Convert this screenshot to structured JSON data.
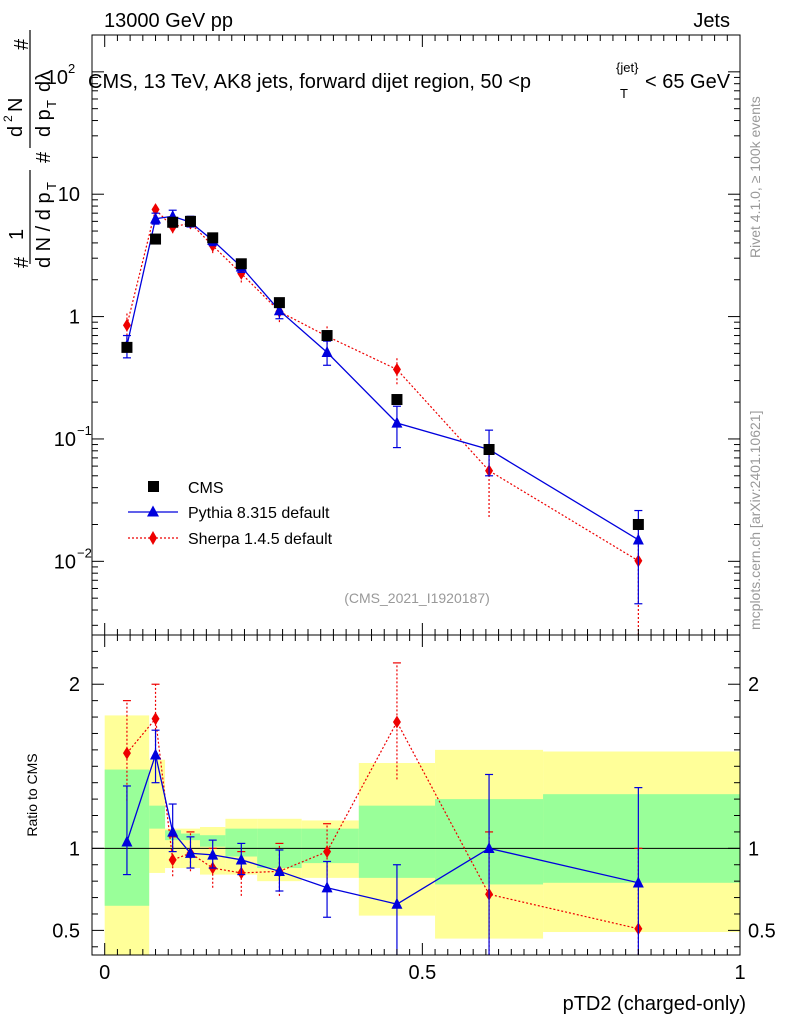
{
  "header": {
    "left": "13000 GeV pp",
    "right": "Jets"
  },
  "side_labels": {
    "rivet": "Rivet 4.1.0, ≥ 100k events",
    "mcplots": "mcplots.cern.ch [arXiv:2401.10621]"
  },
  "chart_data": [
    {
      "type": "scatter",
      "panel": "main",
      "title": "CMS, 13 TeV, AK8 jets, forward dijet region, 50 <p_T^{jet}< 65 GeV",
      "title_parts": {
        "prefix": "CMS, 13 TeV, AK8 jets, forward dijet region, 50 <p",
        "sup": "{jet}",
        "sub": "T",
        "suffix": "< 65 GeV"
      },
      "ylabel": "1/dN/dpT  dN^2/dpT dλ",
      "ylabel_parts": {
        "hash1": "#",
        "frac1_num": "1",
        "frac1_den": "d N / d p",
        "frac1_den_sub": "T",
        "hash2": "#",
        "frac2_num": "d",
        "frac2_num_sup": "2",
        "frac2_num_rest": "N",
        "hash3": "#",
        "frac2_den": "d p",
        "frac2_den_sub": "T",
        "frac2_den_rest": "dλ"
      },
      "yscale": "log",
      "ylim": [
        0.0025,
        200
      ],
      "xlim": [
        -0.02,
        1.0
      ],
      "y_ticks": [
        {
          "value": 100,
          "label": "10",
          "sup": "2"
        },
        {
          "value": 10,
          "label": "10",
          "sup": ""
        },
        {
          "value": 1,
          "label": "1",
          "sup": ""
        },
        {
          "value": 0.1,
          "label": "10",
          "sup": "−1"
        },
        {
          "value": 0.01,
          "label": "10",
          "sup": "−2"
        }
      ],
      "watermark": "(CMS_2021_I1920187)",
      "legend": {
        "placement": "bottom-left",
        "entries": [
          {
            "name": "CMS",
            "marker": "square",
            "color": "#000000"
          },
          {
            "name": "Pythia 8.315 default",
            "marker": "triangle",
            "color": "#0000dd"
          },
          {
            "name": "Sherpa 1.4.5 default",
            "marker": "diamond",
            "color": "#ee0000"
          }
        ]
      },
      "series": [
        {
          "name": "CMS",
          "x": [
            0.035,
            0.08,
            0.107,
            0.135,
            0.17,
            0.215,
            0.275,
            0.35,
            0.46,
            0.605,
            0.84
          ],
          "values": [
            0.56,
            4.3,
            5.9,
            6.0,
            4.4,
            2.7,
            1.3,
            0.7,
            0.21,
            0.082,
            0.02
          ]
        },
        {
          "name": "Pythia 8.315 default",
          "x": [
            0.035,
            0.08,
            0.107,
            0.135,
            0.17,
            0.215,
            0.275,
            0.35,
            0.46,
            0.605,
            0.84
          ],
          "values": [
            0.58,
            6.3,
            6.6,
            5.9,
            4.2,
            2.55,
            1.12,
            0.51,
            0.135,
            0.082,
            0.015
          ],
          "err_low": [
            0.46,
            5.7,
            6.0,
            5.4,
            3.8,
            2.3,
            0.96,
            0.4,
            0.085,
            0.05,
            0.0045
          ],
          "err_high": [
            0.7,
            7.0,
            7.4,
            6.6,
            4.6,
            2.8,
            1.3,
            0.63,
            0.185,
            0.118,
            0.026
          ]
        },
        {
          "name": "Sherpa 1.4.5 default",
          "x": [
            0.035,
            0.08,
            0.107,
            0.135,
            0.17,
            0.215,
            0.275,
            0.35,
            0.46,
            0.605,
            0.84
          ],
          "values": [
            0.85,
            7.5,
            5.4,
            5.8,
            3.8,
            2.25,
            1.1,
            0.69,
            0.37,
            0.055,
            0.0101
          ],
          "err_low": [
            0.65,
            6.7,
            4.8,
            5.2,
            3.3,
            1.9,
            0.9,
            0.55,
            0.28,
            0.023,
            0.0022
          ],
          "err_high": [
            1.07,
            8.4,
            6.0,
            6.4,
            4.3,
            2.6,
            1.3,
            0.84,
            0.47,
            0.088,
            0.018
          ]
        }
      ]
    },
    {
      "type": "scatter",
      "panel": "ratio",
      "xlabel": "pTD2 (charged-only)",
      "ylabel": "Ratio to CMS",
      "xlim": [
        -0.02,
        1.0
      ],
      "ylim": [
        0.35,
        2.3
      ],
      "x_ticks": [
        {
          "value": 0,
          "label": "0"
        },
        {
          "value": 0.5,
          "label": "0.5"
        },
        {
          "value": 1,
          "label": "1"
        }
      ],
      "y_ticks": [
        {
          "value": 0.5,
          "label": "0.5"
        },
        {
          "value": 1,
          "label": "1"
        },
        {
          "value": 2,
          "label": "2"
        }
      ],
      "bin_edges": [
        0.0,
        0.07,
        0.095,
        0.12,
        0.15,
        0.19,
        0.24,
        0.31,
        0.4,
        0.52,
        0.69,
        1.0
      ],
      "band_1sigma": {
        "color": "#99ff99",
        "low": [
          0.65,
          1.12,
          1.05,
          1.05,
          1.01,
          0.95,
          0.88,
          0.91,
          0.82,
          0.78,
          0.79
        ],
        "high": [
          1.48,
          1.26,
          1.11,
          1.09,
          1.08,
          1.12,
          1.12,
          1.12,
          1.26,
          1.3,
          1.33
        ]
      },
      "band_2sigma": {
        "color": "#ffff99",
        "low": [
          0.0,
          0.85,
          0.88,
          0.88,
          0.84,
          0.84,
          0.8,
          0.82,
          0.59,
          0.45,
          0.49
        ],
        "high": [
          1.81,
          1.54,
          1.12,
          1.12,
          1.13,
          1.18,
          1.18,
          1.17,
          1.52,
          1.6,
          1.59
        ]
      },
      "series": [
        {
          "name": "Pythia 8.315 default",
          "x": [
            0.035,
            0.08,
            0.107,
            0.135,
            0.17,
            0.215,
            0.275,
            0.35,
            0.46,
            0.605,
            0.84
          ],
          "values": [
            1.04,
            1.57,
            1.1,
            0.97,
            0.96,
            0.93,
            0.86,
            0.76,
            0.66,
            1.0,
            0.79
          ],
          "err_low": [
            0.84,
            1.4,
            0.98,
            0.88,
            0.88,
            0.84,
            0.74,
            0.58,
            0.35,
            0.35,
            0.35
          ],
          "err_high": [
            1.38,
            1.72,
            1.27,
            1.07,
            1.05,
            1.03,
            0.99,
            0.92,
            0.9,
            1.45,
            1.37
          ]
        },
        {
          "name": "Sherpa 1.4.5 default",
          "x": [
            0.035,
            0.08,
            0.107,
            0.135,
            0.17,
            0.215,
            0.275,
            0.35,
            0.46,
            0.605,
            0.84
          ],
          "values": [
            1.58,
            1.79,
            0.93,
            0.97,
            0.88,
            0.85,
            0.86,
            0.98,
            1.77,
            0.72,
            0.51
          ],
          "err_low": [
            1.29,
            1.6,
            0.83,
            0.86,
            0.76,
            0.71,
            0.71,
            0.81,
            1.42,
            0.35,
            0.35
          ],
          "err_high": [
            1.9,
            2.0,
            1.07,
            1.1,
            1.0,
            0.98,
            1.03,
            1.15,
            2.13,
            1.1,
            1.0
          ]
        }
      ]
    }
  ]
}
